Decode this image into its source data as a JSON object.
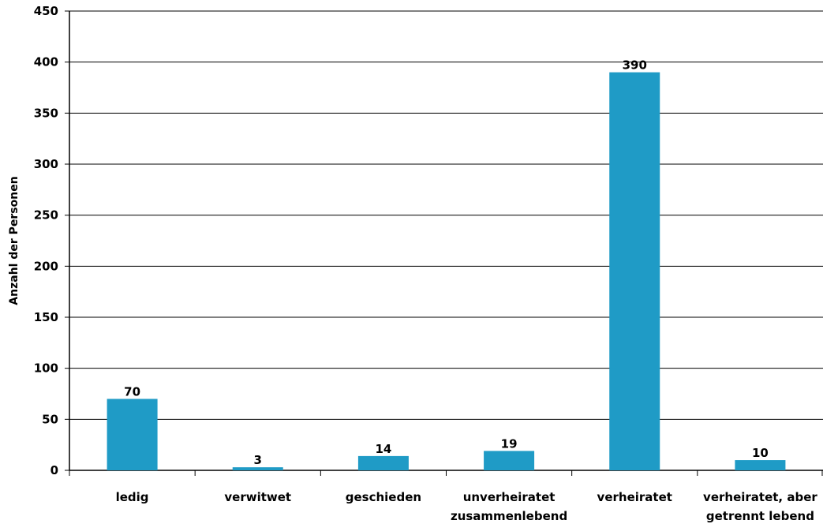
{
  "chart_data": {
    "type": "bar",
    "title": "",
    "xlabel": "",
    "ylabel": "Anzahl der Personen",
    "ylim": [
      0,
      450
    ],
    "yticks": [
      0,
      50,
      100,
      150,
      200,
      250,
      300,
      350,
      400,
      450
    ],
    "grid": true,
    "categories": [
      [
        "ledig"
      ],
      [
        "verwitwet"
      ],
      [
        "geschieden"
      ],
      [
        "unverheiratet",
        "zusammenlebend"
      ],
      [
        "verheiratet"
      ],
      [
        "verheiratet, aber",
        "getrennt lebend"
      ]
    ],
    "values": [
      70,
      3,
      14,
      19,
      390,
      10
    ],
    "colors": {
      "bar": "#1f9bc6",
      "grid": "#000000",
      "axis": "#000000"
    }
  }
}
